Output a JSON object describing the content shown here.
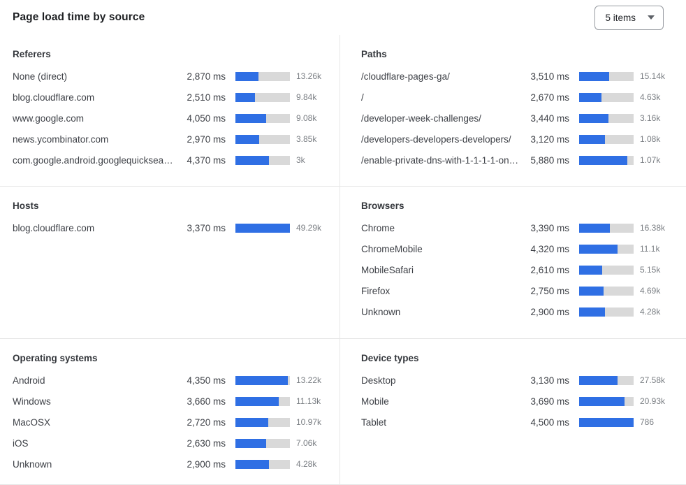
{
  "header": {
    "title": "Page load time by source",
    "items_select": {
      "value": "5 items"
    }
  },
  "colors": {
    "bar_fill": "#2f6fe4",
    "bar_track": "#d9d9d9"
  },
  "panels": [
    {
      "title": "Referers",
      "rows": [
        {
          "label": "None (direct)",
          "ms": "2,870 ms",
          "count": "13.26k",
          "pct": 42
        },
        {
          "label": "blog.cloudflare.com",
          "ms": "2,510 ms",
          "count": "9.84k",
          "pct": 36
        },
        {
          "label": "www.google.com",
          "ms": "4,050 ms",
          "count": "9.08k",
          "pct": 57
        },
        {
          "label": "news.ycombinator.com",
          "ms": "2,970 ms",
          "count": "3.85k",
          "pct": 43
        },
        {
          "label": "com.google.android.googlequicksearc…",
          "ms": "4,370 ms",
          "count": "3k",
          "pct": 61
        }
      ]
    },
    {
      "title": "Paths",
      "rows": [
        {
          "label": "/cloudflare-pages-ga/",
          "ms": "3,510 ms",
          "count": "15.14k",
          "pct": 55
        },
        {
          "label": "/",
          "ms": "2,670 ms",
          "count": "4.63k",
          "pct": 41
        },
        {
          "label": "/developer-week-challenges/",
          "ms": "3,440 ms",
          "count": "3.16k",
          "pct": 54
        },
        {
          "label": "/developers-developers-developers/",
          "ms": "3,120 ms",
          "count": "1.08k",
          "pct": 48
        },
        {
          "label": "/enable-private-dns-with-1-1-1-1-on-…",
          "ms": "5,880 ms",
          "count": "1.07k",
          "pct": 89
        }
      ]
    },
    {
      "title": "Hosts",
      "rows": [
        {
          "label": "blog.cloudflare.com",
          "ms": "3,370 ms",
          "count": "49.29k",
          "pct": 100
        }
      ]
    },
    {
      "title": "Browsers",
      "rows": [
        {
          "label": "Chrome",
          "ms": "3,390 ms",
          "count": "16.38k",
          "pct": 56
        },
        {
          "label": "ChromeMobile",
          "ms": "4,320 ms",
          "count": "11.1k",
          "pct": 71
        },
        {
          "label": "MobileSafari",
          "ms": "2,610 ms",
          "count": "5.15k",
          "pct": 42
        },
        {
          "label": "Firefox",
          "ms": "2,750 ms",
          "count": "4.69k",
          "pct": 45
        },
        {
          "label": "Unknown",
          "ms": "2,900 ms",
          "count": "4.28k",
          "pct": 48
        }
      ]
    },
    {
      "title": "Operating systems",
      "rows": [
        {
          "label": "Android",
          "ms": "4,350 ms",
          "count": "13.22k",
          "pct": 96
        },
        {
          "label": "Windows",
          "ms": "3,660 ms",
          "count": "11.13k",
          "pct": 80
        },
        {
          "label": "MacOSX",
          "ms": "2,720 ms",
          "count": "10.97k",
          "pct": 60
        },
        {
          "label": "iOS",
          "ms": "2,630 ms",
          "count": "7.06k",
          "pct": 57
        },
        {
          "label": "Unknown",
          "ms": "2,900 ms",
          "count": "4.28k",
          "pct": 62
        }
      ]
    },
    {
      "title": "Device types",
      "rows": [
        {
          "label": "Desktop",
          "ms": "3,130 ms",
          "count": "27.58k",
          "pct": 70
        },
        {
          "label": "Mobile",
          "ms": "3,690 ms",
          "count": "20.93k",
          "pct": 83
        },
        {
          "label": "Tablet",
          "ms": "4,500 ms",
          "count": "786",
          "pct": 100
        }
      ]
    }
  ],
  "chart_data": [
    {
      "type": "bar",
      "title": "Referers",
      "categories": [
        "None (direct)",
        "blog.cloudflare.com",
        "www.google.com",
        "news.ycombinator.com",
        "com.google.android.googlequicksearc…"
      ],
      "series": [
        {
          "name": "page_load_time_ms",
          "values": [
            2870,
            2510,
            4050,
            2970,
            4370
          ]
        },
        {
          "name": "count_label",
          "values": [
            "13.26k",
            "9.84k",
            "9.08k",
            "3.85k",
            "3k"
          ]
        }
      ],
      "xlabel": "",
      "ylabel": "ms",
      "legend": "none",
      "grid": false
    },
    {
      "type": "bar",
      "title": "Paths",
      "categories": [
        "/cloudflare-pages-ga/",
        "/",
        "/developer-week-challenges/",
        "/developers-developers-developers/",
        "/enable-private-dns-with-1-1-1-1-on-…"
      ],
      "series": [
        {
          "name": "page_load_time_ms",
          "values": [
            3510,
            2670,
            3440,
            3120,
            5880
          ]
        },
        {
          "name": "count_label",
          "values": [
            "15.14k",
            "4.63k",
            "3.16k",
            "1.08k",
            "1.07k"
          ]
        }
      ],
      "xlabel": "",
      "ylabel": "ms",
      "legend": "none",
      "grid": false
    },
    {
      "type": "bar",
      "title": "Hosts",
      "categories": [
        "blog.cloudflare.com"
      ],
      "series": [
        {
          "name": "page_load_time_ms",
          "values": [
            3370
          ]
        },
        {
          "name": "count_label",
          "values": [
            "49.29k"
          ]
        }
      ],
      "xlabel": "",
      "ylabel": "ms",
      "legend": "none",
      "grid": false
    },
    {
      "type": "bar",
      "title": "Browsers",
      "categories": [
        "Chrome",
        "ChromeMobile",
        "MobileSafari",
        "Firefox",
        "Unknown"
      ],
      "series": [
        {
          "name": "page_load_time_ms",
          "values": [
            3390,
            4320,
            2610,
            2750,
            2900
          ]
        },
        {
          "name": "count_label",
          "values": [
            "16.38k",
            "11.1k",
            "5.15k",
            "4.69k",
            "4.28k"
          ]
        }
      ],
      "xlabel": "",
      "ylabel": "ms",
      "legend": "none",
      "grid": false
    },
    {
      "type": "bar",
      "title": "Operating systems",
      "categories": [
        "Android",
        "Windows",
        "MacOSX",
        "iOS",
        "Unknown"
      ],
      "series": [
        {
          "name": "page_load_time_ms",
          "values": [
            4350,
            3660,
            2720,
            2630,
            2900
          ]
        },
        {
          "name": "count_label",
          "values": [
            "13.22k",
            "11.13k",
            "10.97k",
            "7.06k",
            "4.28k"
          ]
        }
      ],
      "xlabel": "",
      "ylabel": "ms",
      "legend": "none",
      "grid": false
    },
    {
      "type": "bar",
      "title": "Device types",
      "categories": [
        "Desktop",
        "Mobile",
        "Tablet"
      ],
      "series": [
        {
          "name": "page_load_time_ms",
          "values": [
            3130,
            3690,
            4500
          ]
        },
        {
          "name": "count_label",
          "values": [
            "27.58k",
            "20.93k",
            "786"
          ]
        }
      ],
      "xlabel": "",
      "ylabel": "ms",
      "legend": "none",
      "grid": false
    }
  ]
}
